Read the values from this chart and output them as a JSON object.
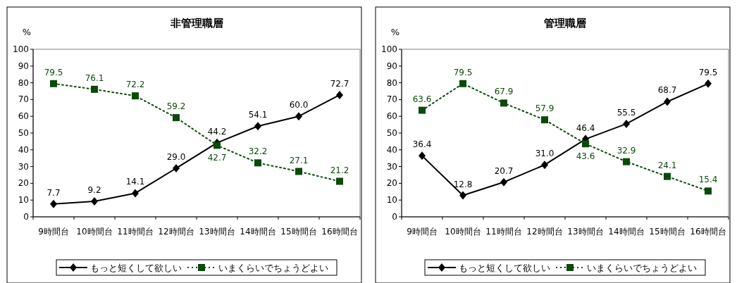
{
  "chart_data": [
    {
      "type": "line",
      "title": "非管理職層",
      "ylabel": "%",
      "categories": [
        "9時間台",
        "10時間台",
        "11時間台",
        "12時間台",
        "13時間台",
        "14時間台",
        "15時間台",
        "16時間台"
      ],
      "ylim": [
        0,
        100
      ],
      "yticks": [
        0,
        10,
        20,
        30,
        40,
        50,
        60,
        70,
        80,
        90,
        100
      ],
      "grid": false,
      "legend": "bottom",
      "series": [
        {
          "name": "もっと短くして欲しい",
          "color": "#000000",
          "marker": "diamond",
          "line_style": "solid",
          "values": [
            7.7,
            9.2,
            14.1,
            29.0,
            44.2,
            54.1,
            60.0,
            72.7
          ],
          "value_labels": [
            "7.7",
            "9.2",
            "14.1",
            "29.0",
            "44.2",
            "54.1",
            "60.0",
            "72.7"
          ]
        },
        {
          "name": "いまくらいでちょうどよい",
          "color": "#0b4a0b",
          "marker": "square",
          "line_style": "dotted",
          "values": [
            79.5,
            76.1,
            72.2,
            59.2,
            42.7,
            32.2,
            27.1,
            21.2
          ],
          "value_labels": [
            "79.5",
            "76.1",
            "72.2",
            "59.2",
            "42.7",
            "32.2",
            "27.1",
            "21.2"
          ]
        }
      ]
    },
    {
      "type": "line",
      "title": "管理職層",
      "ylabel": "%",
      "categories": [
        "9時間台",
        "10時間台",
        "11時間台",
        "12時間台",
        "13時間台",
        "14時間台",
        "15時間台",
        "16時間台"
      ],
      "ylim": [
        0,
        100
      ],
      "yticks": [
        0,
        10,
        20,
        30,
        40,
        50,
        60,
        70,
        80,
        90,
        100
      ],
      "grid": false,
      "legend": "bottom",
      "series": [
        {
          "name": "もっと短くして欲しい",
          "color": "#000000",
          "marker": "diamond",
          "line_style": "solid",
          "values": [
            36.4,
            12.8,
            20.7,
            31.0,
            46.4,
            55.5,
            68.7,
            79.5
          ],
          "value_labels": [
            "36.4",
            "12.8",
            "20.7",
            "31.0",
            "46.4",
            "55.5",
            "68.7",
            "79.5"
          ]
        },
        {
          "name": "いまくらいでちょうどよい",
          "color": "#0b4a0b",
          "marker": "square",
          "line_style": "dotted",
          "values": [
            63.6,
            79.5,
            67.9,
            57.9,
            43.6,
            32.9,
            24.1,
            15.4
          ],
          "value_labels": [
            "63.6",
            "79.5",
            "67.9",
            "57.9",
            "43.6",
            "32.9",
            "24.1",
            "15.4"
          ]
        }
      ]
    }
  ]
}
